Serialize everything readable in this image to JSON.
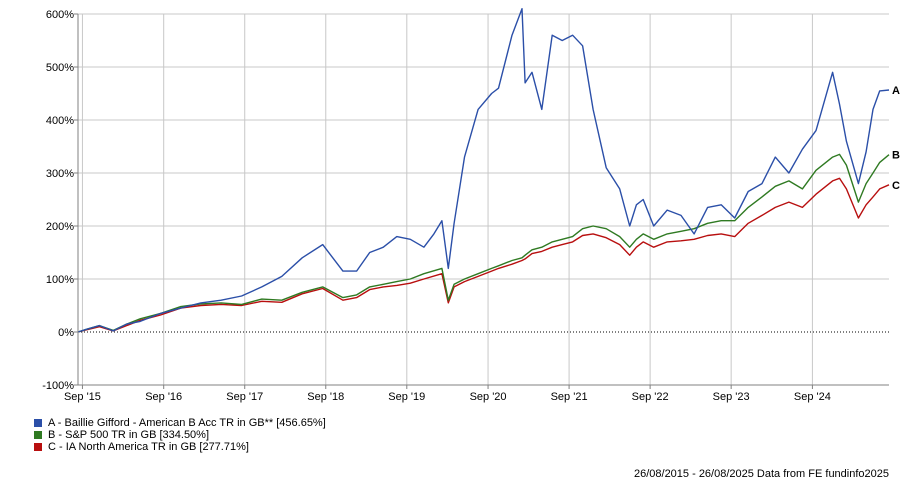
{
  "colors": {
    "A": "#2b4fa8",
    "B": "#2f7a22",
    "C": "#b80f0f",
    "grid": "#c8c8c8",
    "axis": "#808080"
  },
  "chart_data": {
    "type": "line",
    "title": "",
    "xlabel": "",
    "ylabel": "",
    "x_ticks": [
      "Sep '15",
      "Sep '16",
      "Sep '17",
      "Sep '18",
      "Sep '19",
      "Sep '20",
      "Sep '21",
      "Sep '22",
      "Sep '23",
      "Sep '24"
    ],
    "y_ticks": [
      "-100%",
      "0%",
      "100%",
      "200%",
      "300%",
      "400%",
      "500%",
      "600%"
    ],
    "ylim": [
      -100,
      600
    ],
    "xlim": [
      "2015-08-26",
      "2025-08-26"
    ],
    "grid": true,
    "legend_position": "bottom-left",
    "series": [
      {
        "key": "A",
        "name": "A - Baillie Gifford - American B Acc TR in GB** [456.65%]",
        "end_label": "A",
        "color": "#2b4fa8",
        "points": [
          [
            "2015-08-26",
            0
          ],
          [
            "2015-10-01",
            5
          ],
          [
            "2015-12-01",
            12
          ],
          [
            "2016-02-01",
            2
          ],
          [
            "2016-04-01",
            15
          ],
          [
            "2016-06-01",
            20
          ],
          [
            "2016-09-01",
            35
          ],
          [
            "2016-12-01",
            45
          ],
          [
            "2017-03-01",
            55
          ],
          [
            "2017-06-01",
            60
          ],
          [
            "2017-09-01",
            68
          ],
          [
            "2017-12-01",
            85
          ],
          [
            "2018-03-01",
            105
          ],
          [
            "2018-06-01",
            140
          ],
          [
            "2018-09-01",
            165
          ],
          [
            "2018-12-01",
            115
          ],
          [
            "2019-02-01",
            115
          ],
          [
            "2019-04-01",
            150
          ],
          [
            "2019-06-01",
            160
          ],
          [
            "2019-08-01",
            180
          ],
          [
            "2019-10-01",
            175
          ],
          [
            "2019-12-01",
            160
          ],
          [
            "2020-01-15",
            185
          ],
          [
            "2020-02-20",
            210
          ],
          [
            "2020-03-20",
            120
          ],
          [
            "2020-04-15",
            205
          ],
          [
            "2020-06-01",
            330
          ],
          [
            "2020-08-01",
            420
          ],
          [
            "2020-10-01",
            450
          ],
          [
            "2020-11-01",
            460
          ],
          [
            "2021-01-01",
            560
          ],
          [
            "2021-02-15",
            610
          ],
          [
            "2021-03-01",
            470
          ],
          [
            "2021-04-01",
            490
          ],
          [
            "2021-05-15",
            420
          ],
          [
            "2021-07-01",
            560
          ],
          [
            "2021-08-15",
            550
          ],
          [
            "2021-10-01",
            560
          ],
          [
            "2021-11-15",
            540
          ],
          [
            "2022-01-01",
            420
          ],
          [
            "2022-03-01",
            310
          ],
          [
            "2022-05-01",
            270
          ],
          [
            "2022-06-15",
            200
          ],
          [
            "2022-07-15",
            240
          ],
          [
            "2022-08-15",
            250
          ],
          [
            "2022-10-01",
            200
          ],
          [
            "2022-12-01",
            230
          ],
          [
            "2023-02-01",
            220
          ],
          [
            "2023-04-01",
            185
          ],
          [
            "2023-06-01",
            235
          ],
          [
            "2023-08-01",
            240
          ],
          [
            "2023-10-01",
            215
          ],
          [
            "2023-12-01",
            265
          ],
          [
            "2024-02-01",
            280
          ],
          [
            "2024-04-01",
            330
          ],
          [
            "2024-06-01",
            300
          ],
          [
            "2024-08-01",
            345
          ],
          [
            "2024-10-01",
            380
          ],
          [
            "2024-12-15",
            490
          ],
          [
            "2025-01-15",
            430
          ],
          [
            "2025-02-15",
            360
          ],
          [
            "2025-04-10",
            280
          ],
          [
            "2025-05-15",
            340
          ],
          [
            "2025-06-15",
            420
          ],
          [
            "2025-07-15",
            455
          ],
          [
            "2025-08-26",
            456.65
          ]
        ]
      },
      {
        "key": "B",
        "name": "B - S&P 500 TR in GB [334.50%]",
        "end_label": "B",
        "color": "#2f7a22",
        "points": [
          [
            "2015-08-26",
            0
          ],
          [
            "2015-10-01",
            5
          ],
          [
            "2015-12-01",
            12
          ],
          [
            "2016-02-01",
            3
          ],
          [
            "2016-04-01",
            15
          ],
          [
            "2016-06-01",
            25
          ],
          [
            "2016-09-01",
            35
          ],
          [
            "2016-12-01",
            48
          ],
          [
            "2017-03-01",
            53
          ],
          [
            "2017-06-01",
            55
          ],
          [
            "2017-09-01",
            52
          ],
          [
            "2017-12-01",
            62
          ],
          [
            "2018-03-01",
            60
          ],
          [
            "2018-06-01",
            75
          ],
          [
            "2018-09-01",
            85
          ],
          [
            "2018-12-01",
            65
          ],
          [
            "2019-02-01",
            70
          ],
          [
            "2019-04-01",
            85
          ],
          [
            "2019-06-01",
            90
          ],
          [
            "2019-08-01",
            95
          ],
          [
            "2019-10-01",
            100
          ],
          [
            "2019-12-01",
            110
          ],
          [
            "2020-02-20",
            120
          ],
          [
            "2020-03-20",
            60
          ],
          [
            "2020-04-15",
            90
          ],
          [
            "2020-06-01",
            100
          ],
          [
            "2020-08-01",
            110
          ],
          [
            "2020-10-01",
            120
          ],
          [
            "2020-11-01",
            125
          ],
          [
            "2021-01-01",
            135
          ],
          [
            "2021-02-15",
            140
          ],
          [
            "2021-03-01",
            145
          ],
          [
            "2021-04-01",
            155
          ],
          [
            "2021-05-15",
            160
          ],
          [
            "2021-07-01",
            170
          ],
          [
            "2021-08-15",
            175
          ],
          [
            "2021-10-01",
            180
          ],
          [
            "2021-11-15",
            195
          ],
          [
            "2022-01-01",
            200
          ],
          [
            "2022-03-01",
            195
          ],
          [
            "2022-05-01",
            180
          ],
          [
            "2022-06-15",
            160
          ],
          [
            "2022-07-15",
            175
          ],
          [
            "2022-08-15",
            185
          ],
          [
            "2022-10-01",
            175
          ],
          [
            "2022-12-01",
            185
          ],
          [
            "2023-02-01",
            190
          ],
          [
            "2023-04-01",
            195
          ],
          [
            "2023-06-01",
            205
          ],
          [
            "2023-08-01",
            210
          ],
          [
            "2023-10-01",
            210
          ],
          [
            "2023-12-01",
            235
          ],
          [
            "2024-02-01",
            255
          ],
          [
            "2024-04-01",
            275
          ],
          [
            "2024-06-01",
            285
          ],
          [
            "2024-08-01",
            270
          ],
          [
            "2024-10-01",
            305
          ],
          [
            "2024-12-15",
            330
          ],
          [
            "2025-01-15",
            335
          ],
          [
            "2025-02-15",
            315
          ],
          [
            "2025-04-10",
            245
          ],
          [
            "2025-05-15",
            280
          ],
          [
            "2025-06-15",
            300
          ],
          [
            "2025-07-15",
            320
          ],
          [
            "2025-08-26",
            334.5
          ]
        ]
      },
      {
        "key": "C",
        "name": "C - IA North America TR in GB [277.71%]",
        "end_label": "C",
        "color": "#b80f0f",
        "points": [
          [
            "2015-08-26",
            0
          ],
          [
            "2015-10-01",
            4
          ],
          [
            "2015-12-01",
            10
          ],
          [
            "2016-02-01",
            2
          ],
          [
            "2016-04-01",
            12
          ],
          [
            "2016-06-01",
            22
          ],
          [
            "2016-09-01",
            32
          ],
          [
            "2016-12-01",
            45
          ],
          [
            "2017-03-01",
            50
          ],
          [
            "2017-06-01",
            52
          ],
          [
            "2017-09-01",
            50
          ],
          [
            "2017-12-01",
            58
          ],
          [
            "2018-03-01",
            56
          ],
          [
            "2018-06-01",
            72
          ],
          [
            "2018-09-01",
            82
          ],
          [
            "2018-12-01",
            60
          ],
          [
            "2019-02-01",
            65
          ],
          [
            "2019-04-01",
            80
          ],
          [
            "2019-06-01",
            85
          ],
          [
            "2019-08-01",
            88
          ],
          [
            "2019-10-01",
            92
          ],
          [
            "2019-12-01",
            100
          ],
          [
            "2020-02-20",
            110
          ],
          [
            "2020-03-20",
            55
          ],
          [
            "2020-04-15",
            85
          ],
          [
            "2020-06-01",
            95
          ],
          [
            "2020-08-01",
            105
          ],
          [
            "2020-10-01",
            115
          ],
          [
            "2020-11-01",
            120
          ],
          [
            "2021-01-01",
            128
          ],
          [
            "2021-02-15",
            135
          ],
          [
            "2021-03-01",
            138
          ],
          [
            "2021-04-01",
            148
          ],
          [
            "2021-05-15",
            152
          ],
          [
            "2021-07-01",
            160
          ],
          [
            "2021-08-15",
            165
          ],
          [
            "2021-10-01",
            170
          ],
          [
            "2021-11-15",
            182
          ],
          [
            "2022-01-01",
            185
          ],
          [
            "2022-03-01",
            178
          ],
          [
            "2022-05-01",
            165
          ],
          [
            "2022-06-15",
            145
          ],
          [
            "2022-07-15",
            160
          ],
          [
            "2022-08-15",
            170
          ],
          [
            "2022-10-01",
            160
          ],
          [
            "2022-12-01",
            170
          ],
          [
            "2023-02-01",
            172
          ],
          [
            "2023-04-01",
            175
          ],
          [
            "2023-06-01",
            182
          ],
          [
            "2023-08-01",
            185
          ],
          [
            "2023-10-01",
            180
          ],
          [
            "2023-12-01",
            205
          ],
          [
            "2024-02-01",
            220
          ],
          [
            "2024-04-01",
            235
          ],
          [
            "2024-06-01",
            245
          ],
          [
            "2024-08-01",
            235
          ],
          [
            "2024-10-01",
            260
          ],
          [
            "2024-12-15",
            285
          ],
          [
            "2025-01-15",
            290
          ],
          [
            "2025-02-15",
            270
          ],
          [
            "2025-04-10",
            215
          ],
          [
            "2025-05-15",
            240
          ],
          [
            "2025-06-15",
            255
          ],
          [
            "2025-07-15",
            270
          ],
          [
            "2025-08-26",
            277.71
          ]
        ]
      }
    ]
  },
  "footer_text": "26/08/2015 - 26/08/2025 Data from FE fundinfo2025"
}
